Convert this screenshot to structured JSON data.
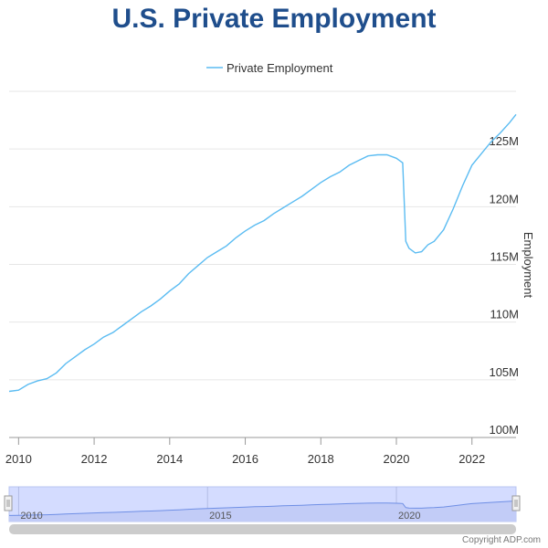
{
  "colors": {
    "title": "#1f4e8c",
    "series": "#5bbcf2",
    "navigator_fill": "#d4dcff",
    "navigator_line": "#6f8fe5",
    "scrollbar": "#cccccc"
  },
  "chart_data": {
    "type": "line",
    "title": "U.S. Private Employment",
    "ylabel": "Employment",
    "xlabel": "",
    "xlim": [
      "2009-10",
      "2023-03"
    ],
    "ylim": [
      100,
      130
    ],
    "y_ticks": [
      "100M",
      "105M",
      "110M",
      "115M",
      "120M",
      "125M"
    ],
    "y_tick_values": [
      100,
      105,
      110,
      115,
      120,
      125
    ],
    "x_ticks": [
      "2010",
      "2012",
      "2014",
      "2016",
      "2018",
      "2020",
      "2022"
    ],
    "x_tick_dates": [
      "2010-01",
      "2012-01",
      "2014-01",
      "2016-01",
      "2018-01",
      "2020-01",
      "2022-01"
    ],
    "legend": {
      "position": "top-center",
      "entries": [
        "Private Employment"
      ]
    },
    "grid": "y",
    "series": [
      {
        "name": "Private Employment",
        "unit": "M",
        "points": [
          [
            "2009-10",
            104.0
          ],
          [
            "2010-01",
            104.1
          ],
          [
            "2010-04",
            104.6
          ],
          [
            "2010-07",
            104.9
          ],
          [
            "2010-10",
            105.1
          ],
          [
            "2011-01",
            105.6
          ],
          [
            "2011-04",
            106.4
          ],
          [
            "2011-07",
            107.0
          ],
          [
            "2011-10",
            107.6
          ],
          [
            "2012-01",
            108.1
          ],
          [
            "2012-04",
            108.7
          ],
          [
            "2012-07",
            109.1
          ],
          [
            "2012-10",
            109.7
          ],
          [
            "2013-01",
            110.3
          ],
          [
            "2013-04",
            110.9
          ],
          [
            "2013-07",
            111.4
          ],
          [
            "2013-10",
            112.0
          ],
          [
            "2014-01",
            112.7
          ],
          [
            "2014-04",
            113.3
          ],
          [
            "2014-07",
            114.2
          ],
          [
            "2014-10",
            114.9
          ],
          [
            "2015-01",
            115.6
          ],
          [
            "2015-04",
            116.1
          ],
          [
            "2015-07",
            116.6
          ],
          [
            "2015-10",
            117.3
          ],
          [
            "2016-01",
            117.9
          ],
          [
            "2016-04",
            118.4
          ],
          [
            "2016-07",
            118.8
          ],
          [
            "2016-10",
            119.4
          ],
          [
            "2017-01",
            119.9
          ],
          [
            "2017-04",
            120.4
          ],
          [
            "2017-07",
            120.9
          ],
          [
            "2017-10",
            121.5
          ],
          [
            "2018-01",
            122.1
          ],
          [
            "2018-04",
            122.6
          ],
          [
            "2018-07",
            123.0
          ],
          [
            "2018-10",
            123.6
          ],
          [
            "2019-01",
            124.0
          ],
          [
            "2019-04",
            124.4
          ],
          [
            "2019-07",
            124.5
          ],
          [
            "2019-10",
            124.5
          ],
          [
            "2020-01",
            124.2
          ],
          [
            "2020-02",
            124.0
          ],
          [
            "2020-03",
            123.8
          ],
          [
            "2020-04",
            117.0
          ],
          [
            "2020-05",
            116.4
          ],
          [
            "2020-07",
            116.0
          ],
          [
            "2020-09",
            116.1
          ],
          [
            "2020-11",
            116.7
          ],
          [
            "2021-01",
            117.0
          ],
          [
            "2021-04",
            118.0
          ],
          [
            "2021-07",
            119.8
          ],
          [
            "2021-10",
            121.8
          ],
          [
            "2022-01",
            123.6
          ],
          [
            "2022-04",
            124.6
          ],
          [
            "2022-07",
            125.6
          ],
          [
            "2022-10",
            126.4
          ],
          [
            "2023-01",
            127.3
          ],
          [
            "2023-03",
            128.0
          ]
        ]
      }
    ],
    "navigator": {
      "labels": [
        "2010",
        "2015",
        "2020"
      ],
      "label_dates": [
        "2010-01",
        "2015-01",
        "2020-01"
      ]
    }
  },
  "footer": {
    "copyright": "Copyright ADP.com"
  }
}
